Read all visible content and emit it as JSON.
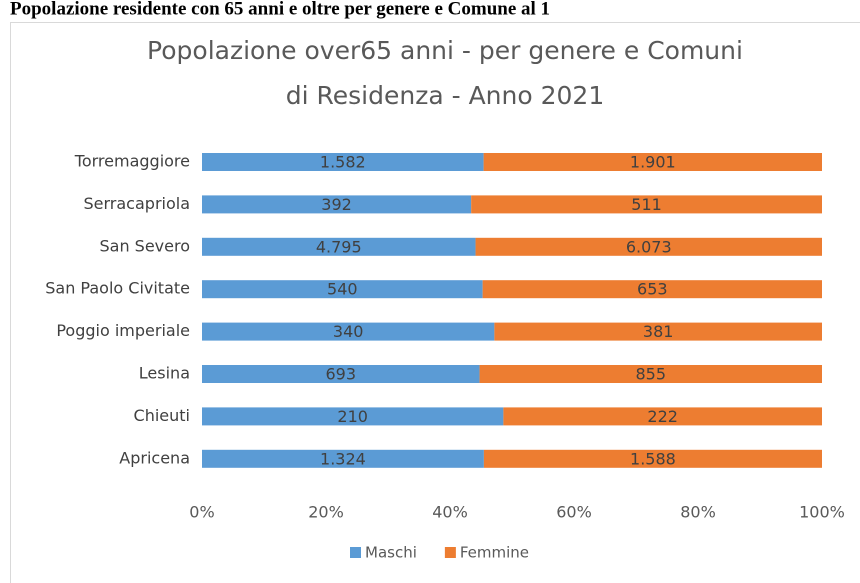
{
  "header": "Popolazione residente con 65 anni e oltre per genere e Comune al 1",
  "chart_data": {
    "type": "bar",
    "orientation": "horizontal",
    "stacking": "percent",
    "title": [
      "Popolazione over65 anni - per genere e Comuni",
      "di Residenza - Anno 2021"
    ],
    "categories": [
      "Torremaggiore",
      "Serracapriola",
      "San Severo",
      "San Paolo Civitate",
      "Poggio imperiale",
      "Lesina",
      "Chieuti",
      "Apricena"
    ],
    "series": [
      {
        "name": "Maschi",
        "color": "#5b9bd5",
        "values": [
          1582,
          392,
          4795,
          540,
          340,
          693,
          210,
          1324
        ],
        "value_labels": [
          "1.582",
          "392",
          "4.795",
          "540",
          "340",
          "693",
          "210",
          "1.324"
        ]
      },
      {
        "name": "Femmine",
        "color": "#ed7d31",
        "values": [
          1901,
          511,
          6073,
          653,
          381,
          855,
          222,
          1588
        ],
        "value_labels": [
          "1.901",
          "511",
          "6.073",
          "653",
          "381",
          "855",
          "222",
          "1.588"
        ]
      }
    ],
    "xlim": [
      0,
      100
    ],
    "xticks": [
      {
        "value": 0,
        "label": "0%"
      },
      {
        "value": 20,
        "label": "20%"
      },
      {
        "value": 40,
        "label": "40%"
      },
      {
        "value": 60,
        "label": "60%"
      },
      {
        "value": 80,
        "label": "80%"
      },
      {
        "value": 100,
        "label": "100%"
      }
    ],
    "grid": false,
    "legend": "bottom"
  }
}
